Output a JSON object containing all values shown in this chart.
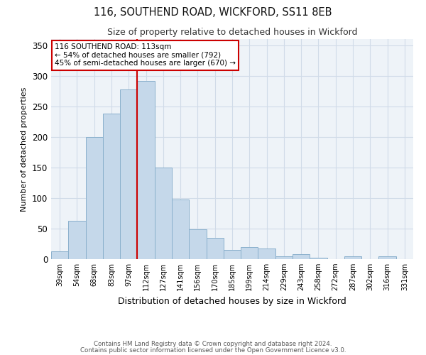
{
  "title1": "116, SOUTHEND ROAD, WICKFORD, SS11 8EB",
  "title2": "Size of property relative to detached houses in Wickford",
  "xlabel": "Distribution of detached houses by size in Wickford",
  "ylabel": "Number of detached properties",
  "bin_labels": [
    "39sqm",
    "54sqm",
    "68sqm",
    "83sqm",
    "97sqm",
    "112sqm",
    "127sqm",
    "141sqm",
    "156sqm",
    "170sqm",
    "185sqm",
    "199sqm",
    "214sqm",
    "229sqm",
    "243sqm",
    "258sqm",
    "272sqm",
    "287sqm",
    "302sqm",
    "316sqm",
    "331sqm"
  ],
  "bar_heights": [
    13,
    63,
    200,
    238,
    278,
    292,
    150,
    97,
    49,
    35,
    15,
    20,
    18,
    5,
    8,
    2,
    0,
    5,
    0,
    5,
    0
  ],
  "bar_color": "#c5d8ea",
  "bar_edge_color": "#8ab0cc",
  "vline_x_idx": 5,
  "vline_color": "#cc0000",
  "ylim": [
    0,
    360
  ],
  "yticks": [
    0,
    50,
    100,
    150,
    200,
    250,
    300,
    350
  ],
  "annotation_title": "116 SOUTHEND ROAD: 113sqm",
  "annotation_line1": "← 54% of detached houses are smaller (792)",
  "annotation_line2": "45% of semi-detached houses are larger (670) →",
  "annotation_box_facecolor": "#ffffff",
  "annotation_box_edgecolor": "#cc0000",
  "footer1": "Contains HM Land Registry data © Crown copyright and database right 2024.",
  "footer2": "Contains public sector information licensed under the Open Government Licence v3.0.",
  "grid_color": "#d0dbe8",
  "bg_color": "#eef3f8"
}
